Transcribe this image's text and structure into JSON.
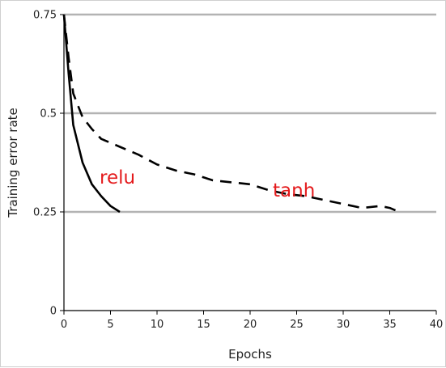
{
  "chart_data": {
    "type": "line",
    "title": "",
    "xlabel": "Epochs",
    "ylabel": "Training error rate",
    "xlim": [
      0,
      40
    ],
    "ylim": [
      0,
      0.75
    ],
    "x_ticks": [
      "0",
      "5",
      "10",
      "15",
      "20",
      "25",
      "30",
      "35",
      "40"
    ],
    "y_ticks": [
      "0",
      "0.25",
      "0.5",
      "0.75"
    ],
    "grid": "horizontal",
    "legend": "none",
    "series": [
      {
        "name": "relu",
        "style": "solid",
        "color": "#000000",
        "label_color": "#e41a1c",
        "x": [
          0,
          0.5,
          1,
          2,
          3,
          4,
          5,
          6
        ],
        "y": [
          0.75,
          0.6,
          0.47,
          0.375,
          0.32,
          0.29,
          0.265,
          0.25
        ]
      },
      {
        "name": "tanh",
        "style": "dashed",
        "color": "#000000",
        "label_color": "#e41a1c",
        "x": [
          0,
          0.5,
          1,
          2,
          3,
          4,
          5,
          6,
          7,
          8,
          10,
          12,
          14,
          16,
          18,
          20,
          22,
          24,
          26,
          28,
          30,
          32,
          34,
          35,
          36
        ],
        "y": [
          0.75,
          0.64,
          0.55,
          0.49,
          0.46,
          0.435,
          0.425,
          0.415,
          0.405,
          0.395,
          0.37,
          0.355,
          0.345,
          0.33,
          0.325,
          0.32,
          0.305,
          0.295,
          0.29,
          0.28,
          0.27,
          0.26,
          0.265,
          0.26,
          0.25
        ]
      }
    ]
  }
}
